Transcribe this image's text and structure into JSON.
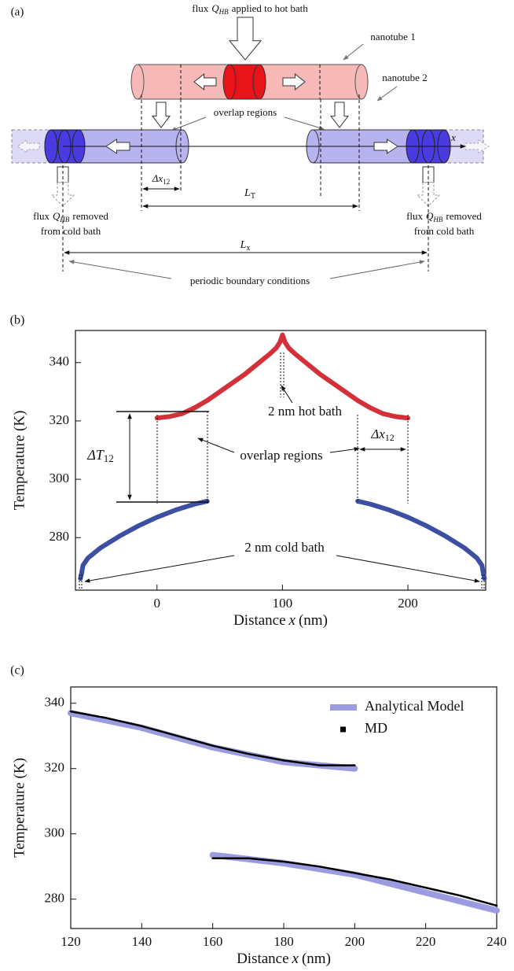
{
  "panel_a": {
    "label": "(a)",
    "hot_flux": {
      "pre": "flux",
      "symbol": "Q",
      "sub": "HB",
      "post": "applied to hot bath"
    },
    "nanotube_1": "nanotube 1",
    "nanotube_2": "nanotube 2",
    "overlap": "overlap regions",
    "x_axis": "x",
    "delta_x": {
      "symbol": "Δx",
      "sub": "12"
    },
    "l_t": {
      "symbol": "L",
      "sub": "T"
    },
    "cold_flux_left": {
      "pre": "flux",
      "symbol": "Q",
      "sub": "HB",
      "post": "removed",
      "line2": "from cold bath"
    },
    "cold_flux_right": {
      "pre": "flux",
      "symbol": "Q",
      "sub": "HB",
      "post": "removed",
      "line2": "from cold bath"
    },
    "l_x": {
      "symbol": "L",
      "sub": "x"
    },
    "periodic": "periodic boundary conditions"
  },
  "chart_data": [
    {
      "type": "line",
      "panel_label": "(b)",
      "y_label": "Temperature (K)",
      "x_label": {
        "pre": "Distance",
        "symbol": "x",
        "post": "(nm)"
      },
      "xlim": [
        -65,
        262
      ],
      "xticks": [
        0,
        100,
        200
      ],
      "ylim": [
        262,
        351
      ],
      "yticks": [
        280,
        300,
        320,
        340
      ],
      "series": [
        {
          "color": "#d3303a",
          "x": [
            0,
            10,
            20,
            30,
            40,
            50,
            60,
            70,
            80,
            90,
            95,
            98,
            100,
            102,
            105,
            110,
            120,
            130,
            140,
            150,
            160,
            170,
            180,
            190,
            200
          ],
          "values": [
            321,
            321.5,
            322.5,
            324.5,
            327,
            330,
            333,
            336,
            339.5,
            343,
            345,
            347,
            349.5,
            347,
            345,
            343,
            339.5,
            336,
            333,
            330,
            327,
            324.5,
            322.5,
            321.5,
            321
          ]
        },
        {
          "color": "#3d4fa3",
          "x": [
            -61,
            -60,
            -59,
            -55,
            -45,
            -30,
            -15,
            0,
            15,
            30,
            40,
            100,
            160,
            170,
            185,
            200,
            215,
            230,
            245,
            255,
            259,
            260,
            261
          ],
          "values": [
            266,
            268,
            270.5,
            273,
            276.5,
            280.5,
            284,
            287,
            289.5,
            291.5,
            292.5,
            null,
            292.5,
            291.5,
            289.5,
            287,
            284,
            280.5,
            276.5,
            273,
            270.5,
            268,
            266
          ]
        }
      ],
      "annotations": {
        "hot_bath": "2 nm hot bath",
        "overlap": "overlap regions",
        "delta_t": {
          "symbol": "ΔT",
          "sub": "12"
        },
        "delta_x": {
          "symbol": "Δx",
          "sub": "12"
        },
        "cold_bath": "2 nm cold bath"
      }
    },
    {
      "type": "line",
      "panel_label": "(c)",
      "y_label": "Temperature (K)",
      "x_label": {
        "pre": "Distance",
        "symbol": "x",
        "post": "(nm)"
      },
      "xlim": [
        120,
        240
      ],
      "xticks": [
        120,
        140,
        160,
        180,
        200,
        220,
        240
      ],
      "ylim": [
        271,
        345
      ],
      "yticks": [
        280,
        300,
        320,
        340
      ],
      "legend": "upper right",
      "series": [
        {
          "name": "Analytical Model",
          "color": "#9b9be0",
          "x": [
            120,
            140,
            160,
            180,
            200,
            200,
            160,
            180,
            200,
            220,
            240
          ],
          "values": [
            337,
            332.5,
            326.5,
            322,
            320,
            null,
            293.5,
            291,
            287.5,
            282,
            276.5
          ]
        },
        {
          "name": "MD",
          "color": "#000000",
          "x": [
            120,
            130,
            140,
            150,
            160,
            170,
            180,
            190,
            200,
            200,
            160,
            170,
            180,
            190,
            200,
            210,
            220,
            230,
            240
          ],
          "values": [
            337.5,
            335.5,
            333,
            330,
            327,
            324.5,
            322.5,
            321,
            321,
            null,
            292.5,
            292.5,
            291.5,
            290,
            288,
            286,
            283.5,
            281,
            278
          ]
        }
      ]
    }
  ]
}
